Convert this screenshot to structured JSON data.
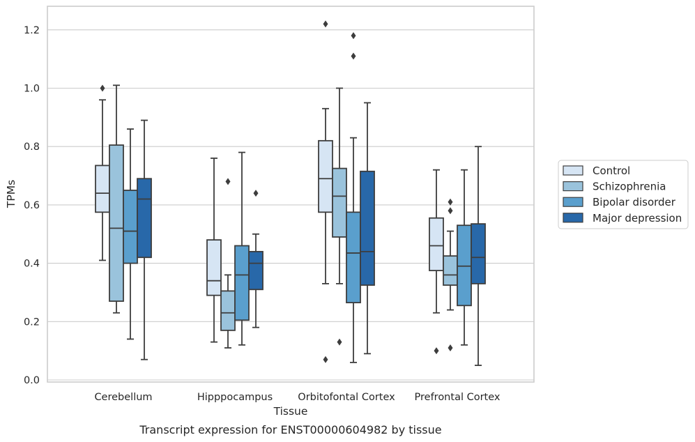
{
  "chart_data": {
    "type": "box",
    "title": "",
    "caption": "Transcript expression for ENST00000604982 by tissue",
    "xlabel": "Tissue",
    "ylabel": "TPMs",
    "ylim": [
      0,
      1.28
    ],
    "yticks": [
      "0.0",
      "0.2",
      "0.4",
      "0.6",
      "0.8",
      "1.0",
      "1.2"
    ],
    "grid": "horizontal",
    "legend_position": "right",
    "categories": [
      "Cerebellum",
      "Hipppocampus",
      "Orbitofontal Cortex",
      "Prefrontal Cortex"
    ],
    "series": [
      {
        "name": "Control",
        "color": "#d6e5f4",
        "boxes": [
          {
            "whisker_low": 0.41,
            "q1": 0.575,
            "median": 0.64,
            "q3": 0.735,
            "whisker_high": 0.96,
            "outliers": [
              1.0
            ]
          },
          {
            "whisker_low": 0.13,
            "q1": 0.29,
            "median": 0.34,
            "q3": 0.48,
            "whisker_high": 0.76,
            "outliers": []
          },
          {
            "whisker_low": 0.33,
            "q1": 0.575,
            "median": 0.69,
            "q3": 0.82,
            "whisker_high": 0.93,
            "outliers": [
              1.22,
              0.07
            ]
          },
          {
            "whisker_low": 0.23,
            "q1": 0.375,
            "median": 0.46,
            "q3": 0.555,
            "whisker_high": 0.72,
            "outliers": [
              0.1
            ]
          }
        ]
      },
      {
        "name": "Schizophrenia",
        "color": "#9ac3dc",
        "boxes": [
          {
            "whisker_low": 0.23,
            "q1": 0.27,
            "median": 0.52,
            "q3": 0.805,
            "whisker_high": 1.01,
            "outliers": []
          },
          {
            "whisker_low": 0.11,
            "q1": 0.17,
            "median": 0.23,
            "q3": 0.305,
            "whisker_high": 0.36,
            "outliers": [
              0.68
            ]
          },
          {
            "whisker_low": 0.33,
            "q1": 0.49,
            "median": 0.63,
            "q3": 0.725,
            "whisker_high": 1.0,
            "outliers": [
              0.13
            ]
          },
          {
            "whisker_low": 0.24,
            "q1": 0.325,
            "median": 0.36,
            "q3": 0.425,
            "whisker_high": 0.51,
            "outliers": [
              0.61,
              0.58,
              0.11
            ]
          }
        ]
      },
      {
        "name": "Bipolar disorder",
        "color": "#5a9fcd",
        "boxes": [
          {
            "whisker_low": 0.14,
            "q1": 0.4,
            "median": 0.51,
            "q3": 0.65,
            "whisker_high": 0.86,
            "outliers": []
          },
          {
            "whisker_low": 0.12,
            "q1": 0.205,
            "median": 0.36,
            "q3": 0.46,
            "whisker_high": 0.78,
            "outliers": []
          },
          {
            "whisker_low": 0.06,
            "q1": 0.265,
            "median": 0.435,
            "q3": 0.575,
            "whisker_high": 0.83,
            "outliers": [
              1.18,
              1.11
            ]
          },
          {
            "whisker_low": 0.12,
            "q1": 0.255,
            "median": 0.39,
            "q3": 0.53,
            "whisker_high": 0.72,
            "outliers": []
          }
        ]
      },
      {
        "name": "Major depression",
        "color": "#2868a9",
        "boxes": [
          {
            "whisker_low": 0.07,
            "q1": 0.42,
            "median": 0.62,
            "q3": 0.69,
            "whisker_high": 0.89,
            "outliers": []
          },
          {
            "whisker_low": 0.18,
            "q1": 0.31,
            "median": 0.4,
            "q3": 0.44,
            "whisker_high": 0.5,
            "outliers": [
              0.64
            ]
          },
          {
            "whisker_low": 0.09,
            "q1": 0.325,
            "median": 0.44,
            "q3": 0.715,
            "whisker_high": 0.95,
            "outliers": []
          },
          {
            "whisker_low": 0.05,
            "q1": 0.33,
            "median": 0.42,
            "q3": 0.535,
            "whisker_high": 0.8,
            "outliers": []
          }
        ]
      }
    ]
  }
}
